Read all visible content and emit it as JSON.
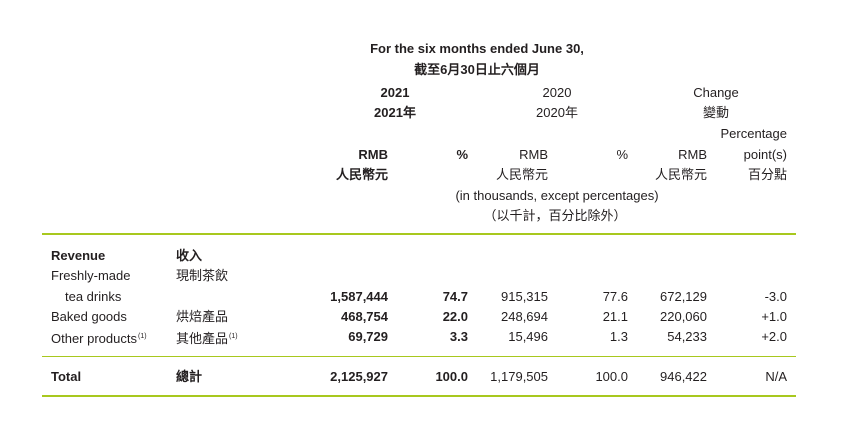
{
  "header": {
    "period_en": "For the six months ended June 30,",
    "period_zh": "截至6月30日止六個月",
    "year_2021": "2021",
    "year_2021_zh": "2021年",
    "year_2020": "2020",
    "year_2020_zh": "2020年",
    "change_en": "Change",
    "change_zh": "變動",
    "pct_point_line1": "Percentage",
    "pct_point_line2": "point(s)",
    "pct_point_zh": "百分點",
    "rmb_2021": "RMB",
    "rmb_2021_zh": "人民幣元",
    "pct_2021": "%",
    "rmb_2020": "RMB",
    "rmb_2020_zh": "人民幣元",
    "pct_2020": "%",
    "rmb_change": "RMB",
    "rmb_change_zh": "人民幣元",
    "units_en": "(in thousands, except percentages)",
    "units_zh": "（以千計，百分比除外）"
  },
  "section": {
    "label_en": "Revenue",
    "label_zh": "收入"
  },
  "rows": [
    {
      "label_en_line1": "Freshly-made",
      "label_en_line2": "tea drinks",
      "label_zh": "現制茶飲",
      "rmb_2021": "1,587,444",
      "pct_2021": "74.7",
      "rmb_2020": "915,315",
      "pct_2020": "77.6",
      "change_rmb": "672,129",
      "change_pp": "-3.0"
    },
    {
      "label_en": "Baked goods",
      "label_zh": "烘焙產品",
      "rmb_2021": "468,754",
      "pct_2021": "22.0",
      "rmb_2020": "248,694",
      "pct_2020": "21.1",
      "change_rmb": "220,060",
      "change_pp": "+1.0"
    },
    {
      "label_en": "Other products",
      "label_zh": "其他產品",
      "footnote": "(1)",
      "rmb_2021": "69,729",
      "pct_2021": "3.3",
      "rmb_2020": "15,496",
      "pct_2020": "1.3",
      "change_rmb": "54,233",
      "change_pp": "+2.0"
    }
  ],
  "total": {
    "label_en": "Total",
    "label_zh": "總計",
    "rmb_2021": "2,125,927",
    "pct_2021": "100.0",
    "rmb_2020": "1,179,505",
    "pct_2020": "100.0",
    "change_rmb": "946,422",
    "change_pp": "N/A"
  },
  "colors": {
    "rule": "#a8c81e",
    "text": "#231f20"
  }
}
